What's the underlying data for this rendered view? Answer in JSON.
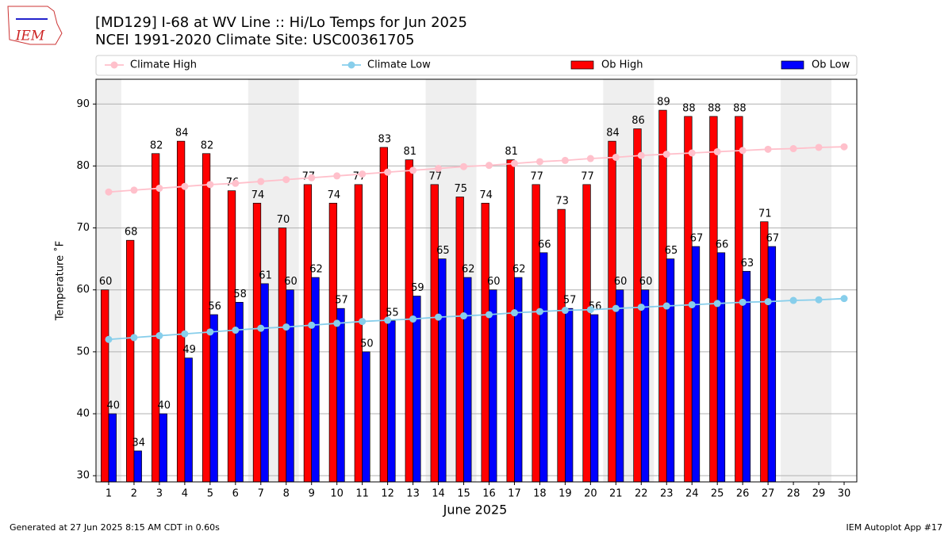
{
  "chart_data": {
    "type": "bar",
    "title": "[MD129] I-68 at WV Line  :: Hi/Lo Temps for Jun 2025",
    "subtitle": "NCEI 1991-2020 Climate Site: USC00361705",
    "logo_text": "IEM",
    "xlabel": "June 2025",
    "ylabel": "Temperature ˚F",
    "footer_left": "Generated at 27 Jun 2025 8:15 AM CDT in 0.60s",
    "footer_right": "IEM Autoplot App #17",
    "x": [
      1,
      2,
      3,
      4,
      5,
      6,
      7,
      8,
      9,
      10,
      11,
      12,
      13,
      14,
      15,
      16,
      17,
      18,
      19,
      20,
      21,
      22,
      23,
      24,
      25,
      26,
      27,
      28,
      29,
      30
    ],
    "xlim": [
      0.5,
      30.5
    ],
    "xticks": [
      1,
      2,
      3,
      4,
      5,
      6,
      7,
      8,
      9,
      10,
      11,
      12,
      13,
      14,
      15,
      16,
      17,
      18,
      19,
      20,
      21,
      22,
      23,
      24,
      25,
      26,
      27,
      28,
      29,
      30
    ],
    "ylim": [
      29,
      94
    ],
    "yticks": [
      30,
      40,
      50,
      60,
      70,
      80,
      90
    ],
    "grid": true,
    "legend": "top",
    "series": [
      {
        "name": "Climate High",
        "type": "line",
        "color": "#ffc0cb",
        "values": [
          75.8,
          76.1,
          76.4,
          76.7,
          77.0,
          77.2,
          77.5,
          77.8,
          78.1,
          78.4,
          78.7,
          79.0,
          79.3,
          79.6,
          79.9,
          80.1,
          80.4,
          80.7,
          80.9,
          81.2,
          81.4,
          81.7,
          81.9,
          82.1,
          82.3,
          82.5,
          82.7,
          82.8,
          83.0,
          83.1
        ]
      },
      {
        "name": "Climate Low",
        "type": "line",
        "color": "#87ceeb",
        "values": [
          52.0,
          52.3,
          52.6,
          52.9,
          53.2,
          53.5,
          53.8,
          54.0,
          54.3,
          54.6,
          54.9,
          55.1,
          55.3,
          55.6,
          55.8,
          56.0,
          56.3,
          56.5,
          56.7,
          56.8,
          57.0,
          57.2,
          57.4,
          57.6,
          57.8,
          58.0,
          58.1,
          58.3,
          58.4,
          58.6
        ]
      },
      {
        "name": "Ob High",
        "type": "bar",
        "color": "#ff0000",
        "values": [
          60,
          68,
          82,
          84,
          82,
          76,
          74,
          70,
          77,
          74,
          77,
          83,
          81,
          77,
          75,
          74,
          81,
          77,
          73,
          77,
          84,
          86,
          89,
          88,
          88,
          88,
          71,
          null,
          null,
          null
        ]
      },
      {
        "name": "Ob Low",
        "type": "bar",
        "color": "#0000ff",
        "values": [
          40,
          34,
          40,
          49,
          56,
          58,
          61,
          60,
          62,
          57,
          50,
          55,
          59,
          65,
          62,
          60,
          62,
          66,
          57,
          56,
          60,
          60,
          65,
          67,
          66,
          63,
          67,
          null,
          null,
          null
        ]
      }
    ]
  }
}
